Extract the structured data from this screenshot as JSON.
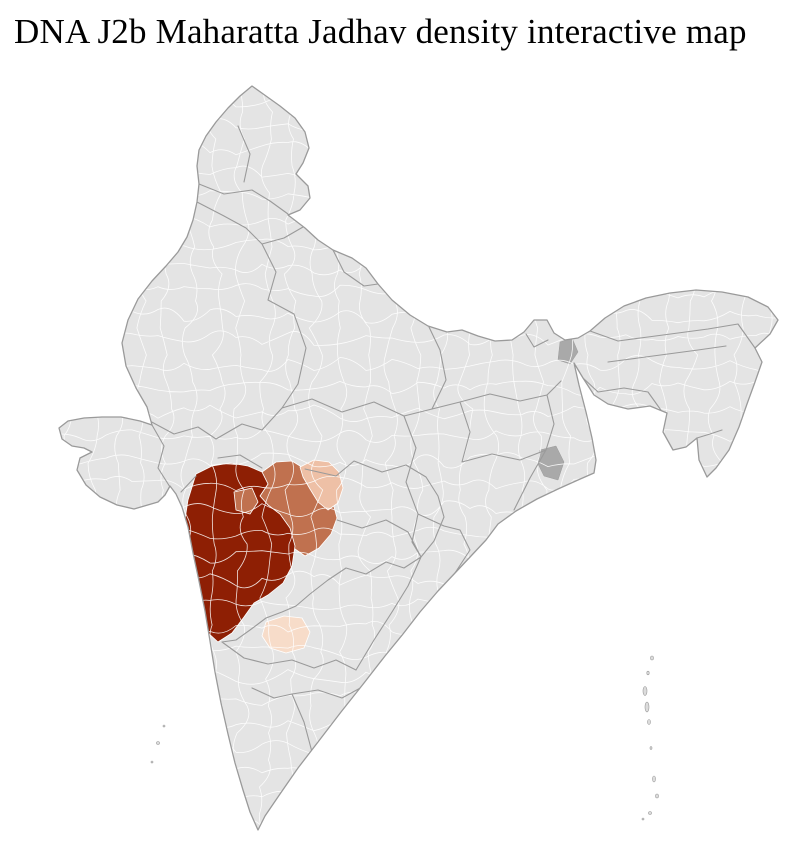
{
  "page": {
    "title": "DNA J2b Maharatta Jadhav density interactive map",
    "background": "#ffffff"
  },
  "map": {
    "base_fill": "#e4e4e4",
    "district_border": "#ffffff",
    "state_border": "#9a9a9a",
    "darker_district": "#a9a9a9",
    "island_fill": "#dcdcdc",
    "levels": {
      "high": "#8e1f04",
      "medium": "#c0714f",
      "low": "#eec0a6",
      "very_low": "#f7dcc9"
    }
  }
}
